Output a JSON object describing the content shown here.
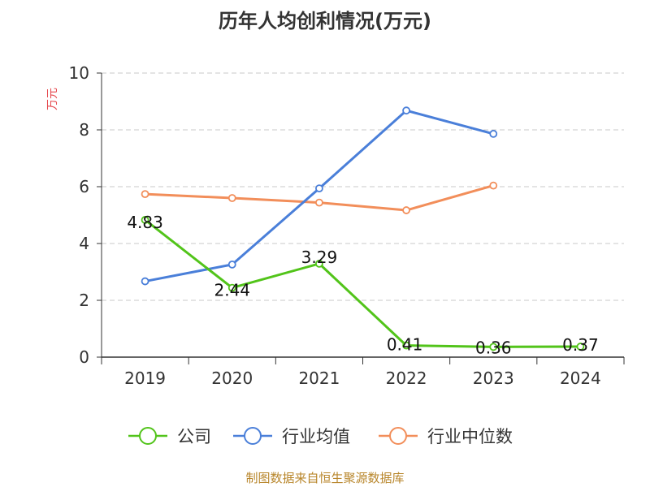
{
  "chart_data": {
    "type": "line",
    "title": "历年人均创利情况(万元)",
    "ylabel": "万元",
    "categories": [
      "2019",
      "2020",
      "2021",
      "2022",
      "2023",
      "2024"
    ],
    "ylim": [
      0,
      10
    ],
    "yticks": [
      "0",
      "2",
      "4",
      "6",
      "8",
      "10"
    ],
    "grid": true,
    "legend_position": "bottom",
    "series": [
      {
        "name": "公司",
        "color": "#52c41a",
        "values": [
          4.83,
          2.44,
          3.29,
          0.41,
          0.36,
          0.37
        ],
        "labels": [
          "4.83",
          "2.44",
          "3.29",
          "0.41",
          "0.36",
          "0.37"
        ]
      },
      {
        "name": "行业均值",
        "color": "#4a7fd9",
        "values": [
          2.67,
          3.26,
          5.94,
          8.68,
          7.86,
          null
        ]
      },
      {
        "name": "行业中位数",
        "color": "#f28e5a",
        "values": [
          5.74,
          5.6,
          5.44,
          5.17,
          6.04,
          null
        ]
      }
    ]
  },
  "source": "制图数据来自恒生聚源数据库"
}
